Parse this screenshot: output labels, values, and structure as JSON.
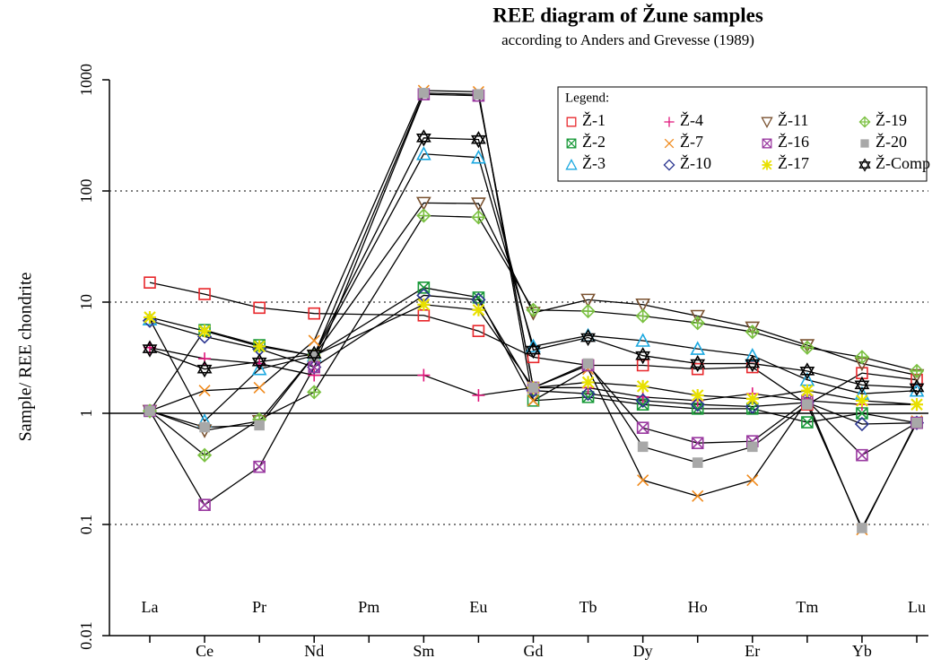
{
  "chart_data": {
    "type": "line",
    "title": "REE diagram of Žune samples",
    "subtitle": "according to Anders and Grevesse (1989)",
    "y_label": "Sample/ REE chondrite",
    "legend_title": "Legend:",
    "legend_position": "top-right",
    "log_y": true,
    "grid": true,
    "reference_line": 1,
    "categories": [
      "La",
      "Ce",
      "Pr",
      "Nd",
      "Pm",
      "Sm",
      "Eu",
      "Gd",
      "Tb",
      "Dy",
      "Ho",
      "Er",
      "Tm",
      "Yb",
      "Lu"
    ],
    "ylim": [
      0.01,
      1000
    ],
    "yticks": [
      0.01,
      0.1,
      1,
      10,
      100,
      1000
    ],
    "series": [
      {
        "name": "Ž-1",
        "color": "#e8282c",
        "marker": "square",
        "values": [
          15,
          11.8,
          8.9,
          7.9,
          null,
          7.6,
          5.5,
          3.2,
          2.7,
          2.7,
          2.5,
          2.6,
          1.2,
          2.3,
          2.0
        ]
      },
      {
        "name": "Ž-2",
        "color": "#1a9a3a",
        "marker": "square-x",
        "values": [
          1.05,
          5.6,
          4.1,
          3.3,
          null,
          13.5,
          11,
          1.3,
          1.4,
          1.2,
          1.1,
          1.1,
          0.83,
          1.0,
          0.82
        ]
      },
      {
        "name": "Ž-3",
        "color": "#1aa8e0",
        "marker": "triangle",
        "values": [
          7.0,
          0.85,
          2.5,
          3.3,
          null,
          215,
          200,
          4.0,
          5.0,
          4.5,
          3.8,
          3.3,
          2.0,
          1.5,
          1.6
        ]
      },
      {
        "name": "Ž-4",
        "color": "#e0157a",
        "marker": "plus",
        "values": [
          3.9,
          3.1,
          2.8,
          2.2,
          null,
          2.2,
          1.45,
          1.7,
          1.7,
          1.4,
          1.3,
          1.5,
          1.3,
          1.2,
          1.2
        ]
      },
      {
        "name": "Ž-7",
        "color": "#f08a1c",
        "marker": "x",
        "values": [
          1.05,
          1.6,
          1.7,
          4.5,
          null,
          800,
          780,
          1.3,
          2.5,
          0.25,
          0.18,
          0.25,
          1.3,
          0.09,
          0.85
        ]
      },
      {
        "name": "Ž-10",
        "color": "#2a3590",
        "marker": "diamond",
        "values": [
          6.8,
          4.9,
          3.8,
          2.6,
          null,
          11.5,
          10.5,
          1.6,
          1.5,
          1.3,
          1.2,
          1.15,
          1.25,
          0.8,
          0.82
        ]
      },
      {
        "name": "Ž-11",
        "color": "#7a5230",
        "marker": "triangle-down",
        "values": [
          1.05,
          0.7,
          0.85,
          3.3,
          null,
          78,
          77,
          8.0,
          10.5,
          9.5,
          7.5,
          5.9,
          4.1,
          2.8,
          2.2
        ]
      },
      {
        "name": "Ž-16",
        "color": "#9a3aa0",
        "marker": "square-x",
        "values": [
          1.05,
          0.15,
          0.33,
          2.6,
          null,
          740,
          720,
          1.7,
          2.7,
          0.74,
          0.54,
          0.56,
          1.3,
          0.42,
          0.82
        ]
      },
      {
        "name": "Ž-17",
        "color": "#e8e000",
        "marker": "star",
        "values": [
          7.3,
          5.5,
          4.0,
          3.3,
          null,
          9.5,
          8.5,
          1.7,
          1.9,
          1.75,
          1.45,
          1.35,
          1.6,
          1.3,
          1.2
        ]
      },
      {
        "name": "Ž-19",
        "color": "#7ac040",
        "marker": "diamond-plus",
        "values": [
          1.05,
          0.42,
          0.88,
          1.55,
          null,
          60,
          58,
          8.5,
          8.3,
          7.5,
          6.5,
          5.4,
          3.9,
          3.2,
          2.4
        ]
      },
      {
        "name": "Ž-20",
        "color": "#a8a8a8",
        "marker": "square-filled",
        "values": [
          1.05,
          0.75,
          0.78,
          3.3,
          null,
          760,
          740,
          1.7,
          2.8,
          0.5,
          0.36,
          0.5,
          1.2,
          0.093,
          0.82
        ]
      },
      {
        "name": "Ž-Comp",
        "color": "#000000",
        "marker": "hexagram",
        "values": [
          3.8,
          2.5,
          2.9,
          3.4,
          null,
          300,
          290,
          3.7,
          4.8,
          3.3,
          2.8,
          2.8,
          2.4,
          1.8,
          1.7
        ]
      }
    ]
  }
}
